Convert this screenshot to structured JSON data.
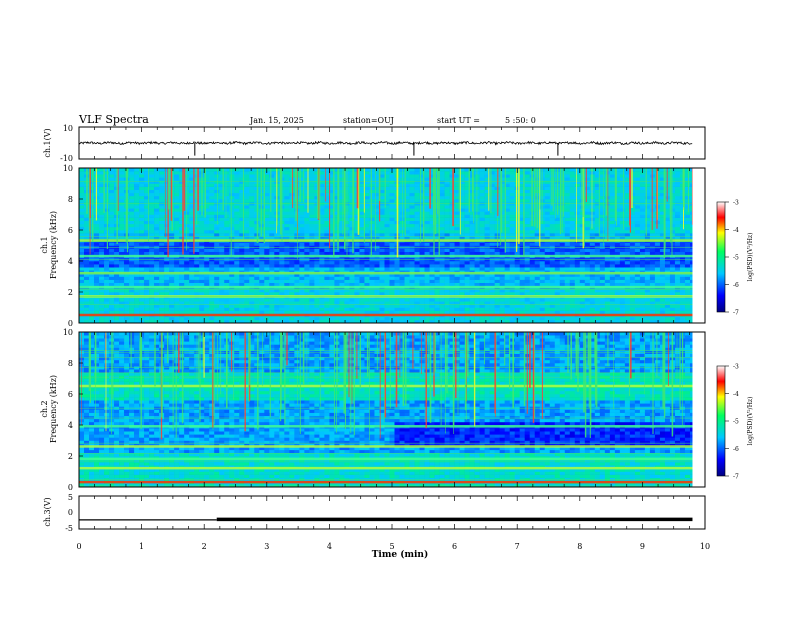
{
  "header": {
    "title": "VLF Spectra",
    "date": "Jan. 15, 2025",
    "station": "station=OUJ",
    "start_label": "start  UT =",
    "start_time": "5 :50: 0"
  },
  "panels": {
    "ch1_wave": {
      "ylabel": "ch.1(V)",
      "ymax_label": "10",
      "ymin_label": "-10"
    },
    "ch1_spec": {
      "ylabel_line1": "ch.1",
      "ylabel_line2": "Frequency (kHz)",
      "yticks": [
        "0",
        "2",
        "4",
        "6",
        "8",
        "10"
      ]
    },
    "ch2_spec": {
      "ylabel_line1": "ch.2",
      "ylabel_line2": "Frequency (kHz)",
      "yticks": [
        "0",
        "2",
        "4",
        "6",
        "8",
        "10"
      ]
    },
    "ch3_wave": {
      "ylabel": "ch.3(V)",
      "ymax_label": "5",
      "ymid_label": "0",
      "ymin_label": "-5"
    }
  },
  "colorbar": {
    "ticks": [
      "-3",
      "-4",
      "-5",
      "-6",
      "-7"
    ],
    "label": "log(PSD)(V²/Hz)"
  },
  "xaxis": {
    "label": "Time (min)",
    "ticks": [
      "0",
      "1",
      "2",
      "3",
      "4",
      "5",
      "6",
      "7",
      "8",
      "9",
      "10"
    ]
  },
  "colors": {
    "spectrogram_low": "#00007a",
    "spectrogram_mid": "#00c8ff",
    "spectrogram_high": "#ff0000",
    "wave": "#000000"
  },
  "chart_data": [
    {
      "type": "line",
      "panel": "ch.1(V)",
      "x_unit": "min",
      "xlim": [
        0,
        10
      ],
      "ylim": [
        -10,
        10
      ],
      "description_values": {
        "baseline_V": 0,
        "data_end_min": 9.8
      },
      "spikes_min": [
        1.85,
        5.35,
        7.65
      ]
    },
    {
      "type": "heatmap",
      "panel": "ch.1",
      "xlim": [
        0,
        10
      ],
      "ylim_kHz": [
        0,
        10
      ],
      "colorscale_log_psd": [
        -7,
        -3
      ],
      "strong_bands_kHz": [
        0.5,
        1.7,
        2.3,
        3.2,
        4.3,
        5.3
      ],
      "transition_min": 5.0
    },
    {
      "type": "heatmap",
      "panel": "ch.2",
      "xlim": [
        0,
        10
      ],
      "ylim_kHz": [
        0,
        10
      ],
      "colorscale_log_psd": [
        -7,
        -3
      ],
      "strong_bands_kHz": [
        0.3,
        1.2,
        1.8,
        2.6,
        3.9,
        6.5
      ],
      "transition_min": 5.0
    },
    {
      "type": "line",
      "panel": "ch.3(V)",
      "x_unit": "min",
      "xlim": [
        0,
        10
      ],
      "ylim": [
        -5,
        5
      ],
      "level_V": -2.3,
      "thick_from_min": 2.2,
      "data_end_min": 9.8
    }
  ]
}
